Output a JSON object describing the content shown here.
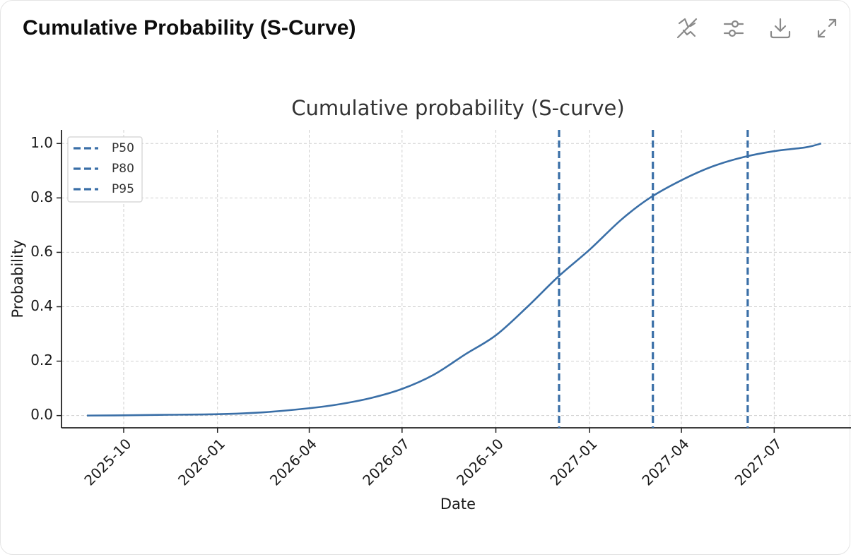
{
  "header": {
    "title": "Cumulative Probability (S-Curve)",
    "toolbar": [
      {
        "name": "hide-annotations-icon",
        "label": ""
      },
      {
        "name": "settings-sliders-icon",
        "label": ""
      },
      {
        "name": "download-icon",
        "label": ""
      },
      {
        "name": "expand-icon",
        "label": ""
      }
    ]
  },
  "colors": {
    "series": "#3a6fa7",
    "grid": "#cfcfcf",
    "axis": "#222222",
    "text": "#1a1a1a"
  },
  "chart_data": {
    "type": "line",
    "title": "Cumulative probability (S-curve)",
    "xlabel": "Date",
    "ylabel": "Probability",
    "xlim": [
      "2025-08-01",
      "2027-09-15"
    ],
    "ylim": [
      -0.045,
      1.05
    ],
    "grid": true,
    "legend_position": "top-left",
    "x_ticks": [
      "2025-10",
      "2026-01",
      "2026-04",
      "2026-07",
      "2026-10",
      "2027-01",
      "2027-04",
      "2027-07"
    ],
    "x_tick_dates": [
      "2025-10-01",
      "2026-01-01",
      "2026-04-01",
      "2026-07-01",
      "2026-10-01",
      "2027-01-01",
      "2027-04-01",
      "2027-07-01"
    ],
    "y_ticks": [
      0.0,
      0.2,
      0.4,
      0.6,
      0.8,
      1.0
    ],
    "y_tick_labels": [
      "0.0",
      "0.2",
      "0.4",
      "0.6",
      "0.8",
      "1.0"
    ],
    "series": [
      {
        "x": [
          "2025-08-26",
          "2025-10-01",
          "2025-11-15",
          "2026-01-01",
          "2026-02-15",
          "2026-04-01",
          "2026-05-01",
          "2026-06-01",
          "2026-07-01",
          "2026-08-01",
          "2026-09-01",
          "2026-10-01",
          "2026-11-01",
          "2026-12-01",
          "2027-01-01",
          "2027-02-01",
          "2027-03-01",
          "2027-04-01",
          "2027-05-01",
          "2027-06-01",
          "2027-07-01",
          "2027-08-01",
          "2027-08-16"
        ],
        "values": [
          0.0,
          0.001,
          0.003,
          0.005,
          0.012,
          0.027,
          0.042,
          0.065,
          0.098,
          0.15,
          0.225,
          0.295,
          0.4,
          0.51,
          0.61,
          0.72,
          0.8,
          0.865,
          0.915,
          0.95,
          0.972,
          0.986,
          1.0
        ]
      }
    ],
    "vlines": [
      {
        "name": "P50",
        "x": "2026-12-02"
      },
      {
        "name": "P80",
        "x": "2027-03-04"
      },
      {
        "name": "P95",
        "x": "2027-06-05"
      }
    ]
  }
}
